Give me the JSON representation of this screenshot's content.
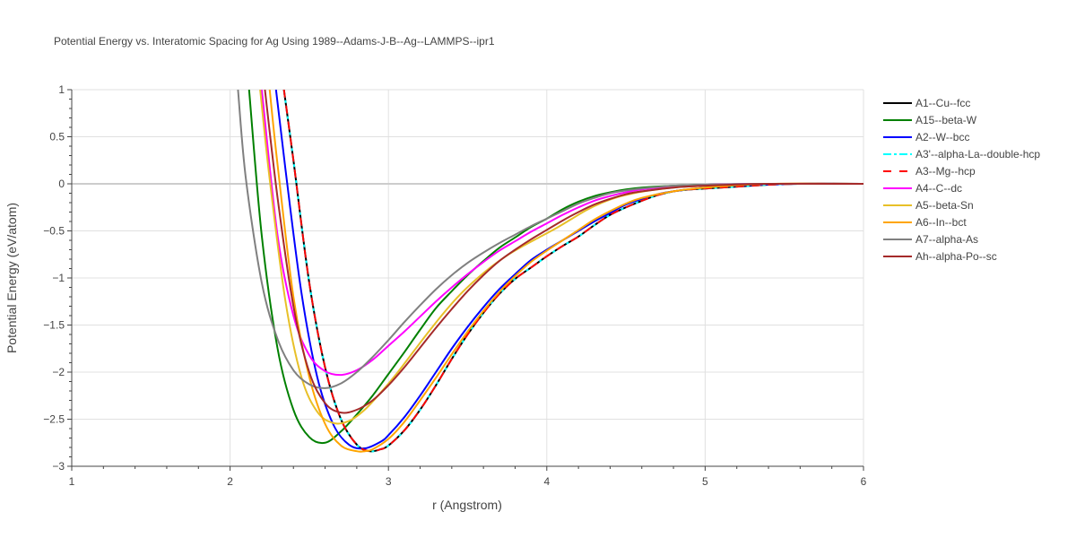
{
  "chart_data": {
    "type": "line",
    "title": "Potential Energy vs. Interatomic Spacing for Ag Using 1989--Adams-J-B--Ag--LAMMPS--ipr1",
    "xlabel": "r (Angstrom)",
    "ylabel": "Potential Energy (eV/atom)",
    "xlim": [
      1,
      6
    ],
    "ylim": [
      -3,
      1
    ],
    "xticks": [
      1,
      2,
      3,
      4,
      5,
      6
    ],
    "xtick_labels": [
      "1",
      "2",
      "3",
      "4",
      "5",
      "6"
    ],
    "yticks": [
      1,
      0.5,
      0,
      -0.5,
      -1,
      -1.5,
      -2,
      -2.5,
      -3
    ],
    "ytick_labels": [
      "1",
      "0.5",
      "0",
      "−0.5",
      "−1",
      "−1.5",
      "−2",
      "−2.5",
      "−3"
    ],
    "grid": true,
    "legend_position": "right",
    "series": [
      {
        "name": "A1--Cu--fcc",
        "color": "#000000",
        "dash": "solid",
        "x": [
          2.34,
          2.4,
          2.5,
          2.6,
          2.7,
          2.8,
          2.88,
          2.95,
          3.0,
          3.1,
          3.2,
          3.3,
          3.4,
          3.5,
          3.6,
          3.7,
          3.8,
          3.9,
          4.0,
          4.1,
          4.2,
          4.3,
          4.4,
          4.5,
          4.6,
          4.7,
          4.8,
          4.9,
          5.0,
          5.2,
          5.4,
          5.6,
          6.0
        ],
        "y": [
          1.0,
          0.25,
          -1.05,
          -1.95,
          -2.5,
          -2.77,
          -2.84,
          -2.82,
          -2.78,
          -2.62,
          -2.4,
          -2.14,
          -1.86,
          -1.6,
          -1.37,
          -1.17,
          -1.01,
          -0.89,
          -0.77,
          -0.66,
          -0.56,
          -0.44,
          -0.33,
          -0.25,
          -0.18,
          -0.12,
          -0.08,
          -0.06,
          -0.05,
          -0.03,
          -0.01,
          0.0,
          0.0
        ]
      },
      {
        "name": "A15--beta-W",
        "color": "#008000",
        "dash": "solid",
        "x": [
          2.12,
          2.2,
          2.3,
          2.4,
          2.5,
          2.6,
          2.7,
          2.8,
          2.9,
          3.0,
          3.1,
          3.2,
          3.3,
          3.4,
          3.5,
          3.6,
          3.7,
          3.8,
          3.9,
          4.0,
          4.1,
          4.2,
          4.3,
          4.4,
          4.5,
          4.6,
          4.8,
          5.0,
          5.4,
          6.0
        ],
        "y": [
          1.0,
          -0.55,
          -1.75,
          -2.4,
          -2.69,
          -2.75,
          -2.63,
          -2.45,
          -2.25,
          -2.02,
          -1.79,
          -1.55,
          -1.32,
          -1.14,
          -0.97,
          -0.82,
          -0.68,
          -0.57,
          -0.46,
          -0.37,
          -0.27,
          -0.19,
          -0.13,
          -0.09,
          -0.06,
          -0.04,
          -0.02,
          -0.01,
          0.0,
          0.0
        ]
      },
      {
        "name": "A2--W--bcc",
        "color": "#0000ff",
        "dash": "solid",
        "x": [
          2.29,
          2.35,
          2.45,
          2.55,
          2.65,
          2.75,
          2.85,
          2.95,
          3.0,
          3.1,
          3.2,
          3.3,
          3.4,
          3.5,
          3.6,
          3.7,
          3.8,
          3.9,
          4.0,
          4.1,
          4.2,
          4.3,
          4.4,
          4.5,
          4.6,
          4.7,
          4.8,
          5.0,
          5.2,
          5.6,
          6.0
        ],
        "y": [
          1.0,
          0.15,
          -1.15,
          -2.05,
          -2.55,
          -2.77,
          -2.81,
          -2.74,
          -2.67,
          -2.48,
          -2.25,
          -2.0,
          -1.75,
          -1.52,
          -1.31,
          -1.12,
          -0.96,
          -0.81,
          -0.7,
          -0.6,
          -0.5,
          -0.4,
          -0.31,
          -0.22,
          -0.16,
          -0.11,
          -0.08,
          -0.04,
          -0.02,
          0.0,
          0.0
        ]
      },
      {
        "name": "A3'--alpha-La--double-hcp",
        "color": "#00ffff",
        "dash": "dashdot",
        "x": [
          2.34,
          2.4,
          2.5,
          2.6,
          2.7,
          2.8,
          2.88,
          2.95,
          3.0,
          3.1,
          3.2,
          3.3,
          3.4,
          3.5,
          3.6,
          3.7,
          3.8,
          3.9,
          4.0,
          4.1,
          4.2,
          4.3,
          4.4,
          4.5,
          4.6,
          4.7,
          4.8,
          4.9,
          5.0,
          5.2,
          5.4,
          5.6,
          6.0
        ],
        "y": [
          1.0,
          0.25,
          -1.05,
          -1.95,
          -2.5,
          -2.77,
          -2.84,
          -2.82,
          -2.78,
          -2.62,
          -2.4,
          -2.14,
          -1.86,
          -1.6,
          -1.37,
          -1.17,
          -1.01,
          -0.89,
          -0.77,
          -0.66,
          -0.56,
          -0.44,
          -0.33,
          -0.25,
          -0.18,
          -0.12,
          -0.08,
          -0.06,
          -0.05,
          -0.03,
          -0.01,
          0.0,
          0.0
        ]
      },
      {
        "name": "A3--Mg--hcp",
        "color": "#ff0000",
        "dash": "dash",
        "x": [
          2.34,
          2.4,
          2.5,
          2.6,
          2.7,
          2.8,
          2.88,
          2.95,
          3.0,
          3.1,
          3.2,
          3.3,
          3.4,
          3.5,
          3.6,
          3.7,
          3.8,
          3.9,
          4.0,
          4.1,
          4.2,
          4.3,
          4.4,
          4.5,
          4.6,
          4.7,
          4.8,
          4.9,
          5.0,
          5.2,
          5.4,
          5.6,
          6.0
        ],
        "y": [
          1.0,
          0.25,
          -1.05,
          -1.95,
          -2.5,
          -2.77,
          -2.84,
          -2.82,
          -2.78,
          -2.62,
          -2.4,
          -2.14,
          -1.86,
          -1.6,
          -1.37,
          -1.17,
          -1.01,
          -0.89,
          -0.77,
          -0.66,
          -0.56,
          -0.44,
          -0.33,
          -0.25,
          -0.18,
          -0.12,
          -0.08,
          -0.06,
          -0.05,
          -0.03,
          -0.01,
          0.0,
          0.0
        ]
      },
      {
        "name": "A4--C--dc",
        "color": "#ff00ff",
        "dash": "solid",
        "x": [
          2.2,
          2.3,
          2.4,
          2.5,
          2.6,
          2.7,
          2.8,
          2.9,
          3.0,
          3.1,
          3.2,
          3.3,
          3.4,
          3.5,
          3.6,
          3.7,
          3.8,
          3.9,
          4.0,
          4.1,
          4.2,
          4.3,
          4.4,
          4.5,
          4.6,
          4.8,
          5.0,
          5.4,
          6.0
        ],
        "y": [
          1.0,
          -0.55,
          -1.4,
          -1.82,
          -1.99,
          -2.03,
          -1.98,
          -1.87,
          -1.72,
          -1.57,
          -1.41,
          -1.25,
          -1.1,
          -0.96,
          -0.83,
          -0.71,
          -0.61,
          -0.51,
          -0.42,
          -0.33,
          -0.25,
          -0.18,
          -0.13,
          -0.09,
          -0.06,
          -0.03,
          -0.01,
          0.0,
          0.0
        ]
      },
      {
        "name": "A5--beta-Sn",
        "color": "#e8c028",
        "dash": "solid",
        "x": [
          2.19,
          2.25,
          2.35,
          2.45,
          2.55,
          2.65,
          2.75,
          2.85,
          2.95,
          3.05,
          3.15,
          3.25,
          3.35,
          3.45,
          3.55,
          3.65,
          3.75,
          3.85,
          3.95,
          4.05,
          4.15,
          4.25,
          4.35,
          4.45,
          4.55,
          4.65,
          4.8,
          5.0,
          5.4,
          6.0
        ],
        "y": [
          1.0,
          0.05,
          -1.25,
          -2.05,
          -2.42,
          -2.54,
          -2.52,
          -2.4,
          -2.22,
          -2.02,
          -1.8,
          -1.58,
          -1.37,
          -1.18,
          -1.02,
          -0.88,
          -0.76,
          -0.66,
          -0.57,
          -0.48,
          -0.38,
          -0.28,
          -0.2,
          -0.14,
          -0.1,
          -0.07,
          -0.04,
          -0.02,
          0.0,
          0.0
        ]
      },
      {
        "name": "A6--In--bct",
        "color": "#ffa500",
        "dash": "solid",
        "x": [
          2.25,
          2.3,
          2.4,
          2.5,
          2.6,
          2.7,
          2.8,
          2.85,
          2.9,
          3.0,
          3.1,
          3.2,
          3.3,
          3.4,
          3.5,
          3.6,
          3.7,
          3.8,
          3.9,
          4.0,
          4.1,
          4.2,
          4.3,
          4.4,
          4.5,
          4.6,
          4.8,
          5.0,
          5.4,
          6.0
        ],
        "y": [
          1.0,
          0.2,
          -1.2,
          -2.05,
          -2.55,
          -2.78,
          -2.84,
          -2.84,
          -2.82,
          -2.71,
          -2.53,
          -2.3,
          -2.06,
          -1.81,
          -1.57,
          -1.35,
          -1.15,
          -0.98,
          -0.83,
          -0.71,
          -0.6,
          -0.49,
          -0.38,
          -0.29,
          -0.21,
          -0.15,
          -0.08,
          -0.04,
          0.0,
          0.0
        ]
      },
      {
        "name": "A7--alpha-As",
        "color": "#808080",
        "dash": "solid",
        "x": [
          2.05,
          2.1,
          2.2,
          2.3,
          2.4,
          2.5,
          2.6,
          2.7,
          2.8,
          2.9,
          3.0,
          3.1,
          3.2,
          3.3,
          3.4,
          3.5,
          3.6,
          3.7,
          3.8,
          3.9,
          4.0,
          4.1,
          4.2,
          4.3,
          4.4,
          4.5,
          4.6,
          4.8,
          5.0,
          5.4,
          6.0
        ],
        "y": [
          1.0,
          0.05,
          -1.05,
          -1.65,
          -1.98,
          -2.13,
          -2.17,
          -2.12,
          -2.0,
          -1.84,
          -1.66,
          -1.47,
          -1.29,
          -1.12,
          -0.97,
          -0.84,
          -0.73,
          -0.63,
          -0.54,
          -0.45,
          -0.37,
          -0.29,
          -0.21,
          -0.15,
          -0.1,
          -0.07,
          -0.05,
          -0.02,
          -0.01,
          0.0,
          0.0
        ]
      },
      {
        "name": "Ah--alpha-Po--sc",
        "color": "#a52a2a",
        "dash": "solid",
        "x": [
          2.22,
          2.3,
          2.4,
          2.5,
          2.6,
          2.7,
          2.8,
          2.9,
          3.0,
          3.1,
          3.2,
          3.3,
          3.4,
          3.5,
          3.6,
          3.7,
          3.8,
          3.9,
          4.0,
          4.1,
          4.2,
          4.3,
          4.4,
          4.5,
          4.6,
          4.8,
          5.0,
          5.4,
          6.0
        ],
        "y": [
          1.0,
          -0.15,
          -1.3,
          -2.0,
          -2.33,
          -2.43,
          -2.4,
          -2.3,
          -2.14,
          -1.95,
          -1.74,
          -1.53,
          -1.33,
          -1.14,
          -0.97,
          -0.82,
          -0.7,
          -0.59,
          -0.49,
          -0.39,
          -0.3,
          -0.22,
          -0.16,
          -0.11,
          -0.08,
          -0.04,
          -0.02,
          0.0,
          0.0
        ]
      }
    ]
  }
}
